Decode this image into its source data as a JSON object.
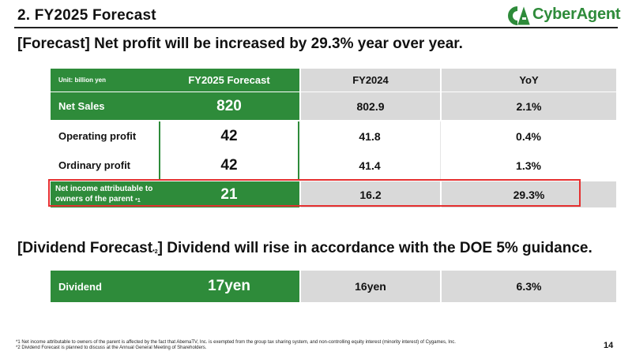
{
  "slide": {
    "title": "2. FY2025 Forecast",
    "page_number": "14"
  },
  "logo": {
    "text": "CyberAgent",
    "registered": "®"
  },
  "heading1": "[Forecast]  Net profit will be increased by 29.3% year over year.",
  "heading2": {
    "prefix": "[Dividend Forecast",
    "sup": "*2",
    "suffix": "]  Dividend will rise in accordance with the DOE 5% guidance."
  },
  "table": {
    "unit_label": "Unit: billion yen",
    "columns": [
      "FY2025 Forecast",
      "FY2024",
      "YoY"
    ],
    "rows": [
      {
        "label": "Net Sales",
        "forecast": "820",
        "fy2024": "802.9",
        "yoy": "2.1%"
      },
      {
        "label": "Operating profit",
        "forecast": "42",
        "fy2024": "41.8",
        "yoy": "0.4%"
      },
      {
        "label": "Ordinary profit",
        "forecast": "42",
        "fy2024": "41.4",
        "yoy": "1.3%"
      },
      {
        "label_line1": "Net income attributable to",
        "label_line2": "owners of the parent",
        "label_sup": "*1",
        "forecast": "21",
        "fy2024": "16.2",
        "yoy": "29.3%"
      }
    ]
  },
  "dividend": {
    "label": "Dividend",
    "forecast": "17yen",
    "fy2024": "16yen",
    "yoy": "6.3%"
  },
  "footnotes": [
    "*1  Net income attributable to owners of the parent is affected by the fact that AbemaTV, Inc. is exempted from the group tax sharing system, and non-controlling equity interest (minority interest) of Cygames, Inc.",
    "*2 Dividend Forecast is planned to discuss at the Annual General Meeting of Shareholders."
  ],
  "colors": {
    "brand_green": "#2e8b3a",
    "header_gray": "#d9d9d9",
    "highlight_red": "#e53030"
  }
}
